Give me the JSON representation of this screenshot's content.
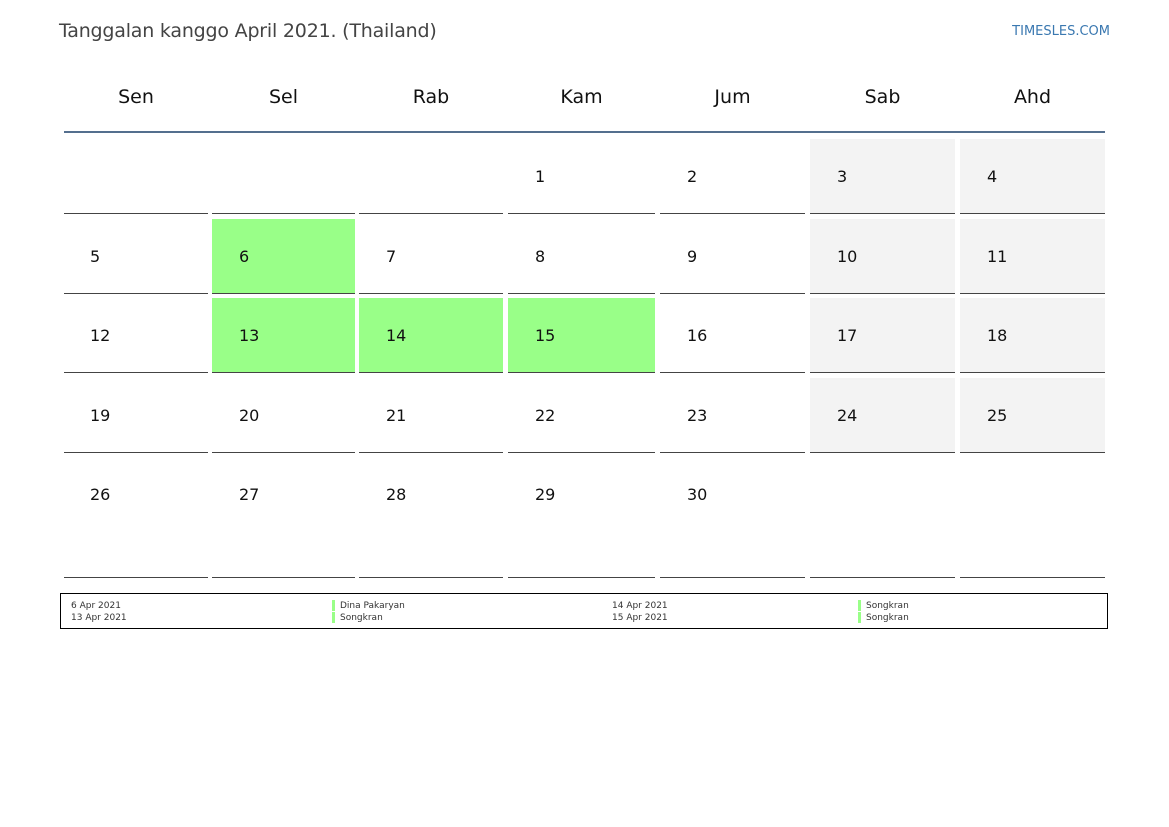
{
  "header": {
    "title": "Tanggalan kanggo April 2021. (Thailand)",
    "site_link": "TIMESLES.COM"
  },
  "weekdays": [
    "Sen",
    "Sel",
    "Rab",
    "Kam",
    "Jum",
    "Sab",
    "Ahd"
  ],
  "calendar": {
    "weeks": [
      [
        "",
        "",
        "",
        "1",
        "2",
        "3",
        "4"
      ],
      [
        "5",
        "6",
        "7",
        "8",
        "9",
        "10",
        "11"
      ],
      [
        "12",
        "13",
        "14",
        "15",
        "16",
        "17",
        "18"
      ],
      [
        "19",
        "20",
        "21",
        "22",
        "23",
        "24",
        "25"
      ],
      [
        "26",
        "27",
        "28",
        "29",
        "30",
        "",
        ""
      ]
    ],
    "holiday_days": [
      "6",
      "13",
      "14",
      "15"
    ],
    "weekend_columns": [
      5,
      6
    ]
  },
  "legend": {
    "col1_dates": [
      "6 Apr 2021",
      "13 Apr 2021"
    ],
    "col1_names": [
      "Dina Pakaryan",
      "Songkran"
    ],
    "col2_dates": [
      "14 Apr 2021",
      "15 Apr 2021"
    ],
    "col2_names": [
      "Songkran",
      "Songkran"
    ]
  },
  "colors": {
    "holiday": "#99ff88",
    "weekend": "#f3f3f3",
    "header_line": "#546f8e",
    "link": "#3a78b0"
  }
}
